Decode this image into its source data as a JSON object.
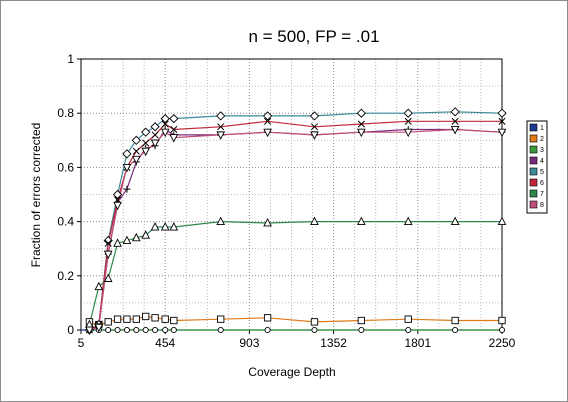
{
  "chart_data": {
    "type": "line",
    "title": "n = 500, FP = .01",
    "xlabel": "Coverage Depth",
    "ylabel": "Fraction of errors corrected",
    "xlim": [
      5,
      2250
    ],
    "ylim": [
      0,
      1
    ],
    "xticks": [
      5,
      454,
      903,
      1352,
      1801,
      2250
    ],
    "yticks": [
      0,
      0.2,
      0.4,
      0.6,
      0.8,
      1
    ],
    "grid": true,
    "legend_position": "right",
    "series": [
      {
        "name": "1",
        "color": "#1f3a93",
        "marker": "none",
        "x": [
          5,
          50,
          100,
          150,
          200,
          250,
          300,
          350,
          400,
          454,
          500,
          750,
          1000,
          1250,
          1500,
          1750,
          2000,
          2250
        ],
        "y": [
          0,
          0,
          0,
          0,
          0,
          0,
          0,
          0,
          0,
          0,
          0,
          0,
          0,
          0,
          0,
          0,
          0,
          0
        ]
      },
      {
        "name": "2",
        "color": "#e07b1a",
        "marker": "square",
        "x": [
          50,
          100,
          150,
          200,
          250,
          300,
          350,
          400,
          454,
          500,
          750,
          1000,
          1250,
          1500,
          1750,
          2000,
          2250
        ],
        "y": [
          0.03,
          0.02,
          0.03,
          0.04,
          0.04,
          0.04,
          0.05,
          0.045,
          0.04,
          0.035,
          0.04,
          0.045,
          0.03,
          0.035,
          0.04,
          0.035,
          0.035
        ]
      },
      {
        "name": "3",
        "color": "#3a9a3a",
        "marker": "circle",
        "x": [
          50,
          100,
          150,
          200,
          250,
          300,
          350,
          400,
          454,
          500,
          750,
          1000,
          1250,
          1500,
          1750,
          2000,
          2250
        ],
        "y": [
          0,
          0,
          0,
          0,
          0,
          0,
          0,
          0,
          0,
          0,
          0,
          0,
          0,
          0,
          0,
          0,
          0
        ]
      },
      {
        "name": "4",
        "color": "#7a2a7a",
        "marker": "plus",
        "x": [
          100,
          150,
          200,
          250,
          300,
          350,
          400,
          454,
          500,
          750,
          1000,
          1250,
          1500,
          1750,
          2000,
          2250
        ],
        "y": [
          0.02,
          0.28,
          0.47,
          0.52,
          0.62,
          0.67,
          0.68,
          0.74,
          0.72,
          0.72,
          0.73,
          0.72,
          0.73,
          0.74,
          0.74,
          0.73
        ]
      },
      {
        "name": "5",
        "color": "#3a8a9a",
        "marker": "diamond",
        "x": [
          50,
          100,
          150,
          200,
          250,
          300,
          350,
          400,
          454,
          500,
          750,
          1000,
          1250,
          1500,
          1750,
          2000,
          2250
        ],
        "y": [
          0,
          0.02,
          0.33,
          0.5,
          0.65,
          0.7,
          0.73,
          0.75,
          0.78,
          0.78,
          0.79,
          0.79,
          0.79,
          0.8,
          0.8,
          0.805,
          0.8
        ]
      },
      {
        "name": "6",
        "color": "#c0283a",
        "marker": "x",
        "x": [
          50,
          100,
          150,
          200,
          250,
          300,
          350,
          400,
          454,
          500,
          750,
          1000,
          1250,
          1500,
          1750,
          2000,
          2250
        ],
        "y": [
          0,
          0.02,
          0.32,
          0.48,
          0.6,
          0.66,
          0.69,
          0.72,
          0.76,
          0.74,
          0.75,
          0.77,
          0.75,
          0.76,
          0.77,
          0.77,
          0.77
        ]
      },
      {
        "name": "7",
        "color": "#2f8a4a",
        "marker": "triangle",
        "x": [
          50,
          100,
          150,
          200,
          250,
          300,
          350,
          400,
          454,
          500,
          750,
          1000,
          1250,
          1500,
          1750,
          2000,
          2250
        ],
        "y": [
          0.02,
          0.16,
          0.19,
          0.32,
          0.33,
          0.34,
          0.35,
          0.38,
          0.38,
          0.38,
          0.4,
          0.395,
          0.4,
          0.4,
          0.4,
          0.4,
          0.4
        ]
      },
      {
        "name": "8",
        "color": "#c0507a",
        "marker": "triangle-down",
        "x": [
          50,
          100,
          150,
          200,
          250,
          300,
          350,
          400,
          454,
          500,
          750,
          1000,
          1250,
          1500,
          1750,
          2000,
          2250
        ],
        "y": [
          0,
          0.01,
          0.28,
          0.46,
          0.6,
          0.63,
          0.66,
          0.69,
          0.73,
          0.71,
          0.72,
          0.73,
          0.72,
          0.73,
          0.73,
          0.74,
          0.73
        ]
      }
    ]
  }
}
